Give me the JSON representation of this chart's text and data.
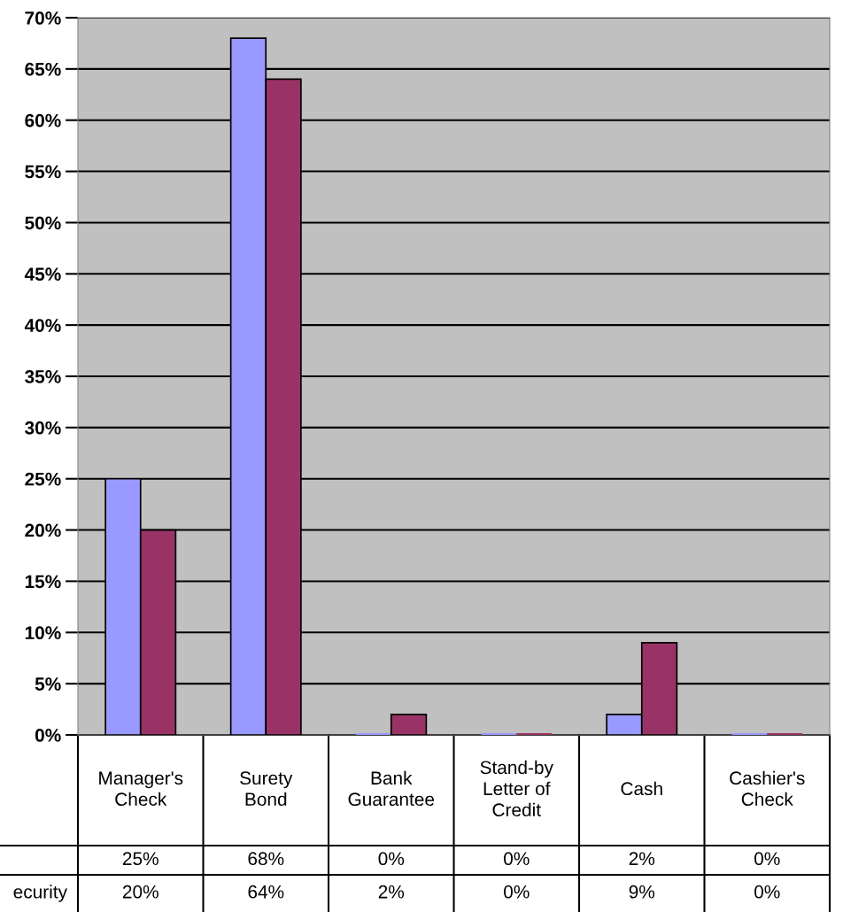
{
  "chart_data": {
    "type": "bar",
    "categories": [
      "Manager's\nCheck",
      "Surety\nBond",
      "Bank\nGuarantee",
      "Stand-by\nLetter of\nCredit",
      "Cash",
      "Cashier's\nCheck"
    ],
    "series": [
      {
        "color": "#9999ff",
        "values": [
          25,
          68,
          0,
          0,
          2,
          0
        ],
        "value_labels": [
          "25%",
          "68%",
          "0%",
          "0%",
          "2%",
          "0%"
        ]
      },
      {
        "name": "ecurity",
        "color": "#993366",
        "values": [
          20,
          64,
          2,
          0,
          9,
          0
        ],
        "value_labels": [
          "20%",
          "64%",
          "2%",
          "0%",
          "9%",
          "0%"
        ]
      }
    ],
    "ylim": [
      0,
      70
    ],
    "yticks": [
      {
        "value": 0,
        "label": "0%"
      },
      {
        "value": 5,
        "label": "5%"
      },
      {
        "value": 10,
        "label": "10%"
      },
      {
        "value": 15,
        "label": "15%"
      },
      {
        "value": 20,
        "label": "20%"
      },
      {
        "value": 25,
        "label": "25%"
      },
      {
        "value": 30,
        "label": "30%"
      },
      {
        "value": 35,
        "label": "35%"
      },
      {
        "value": 40,
        "label": "40%"
      },
      {
        "value": 45,
        "label": "45%"
      },
      {
        "value": 50,
        "label": "50%"
      },
      {
        "value": 55,
        "label": "55%"
      },
      {
        "value": 60,
        "label": "60%"
      },
      {
        "value": 65,
        "label": "65%"
      },
      {
        "value": 70,
        "label": "70%"
      }
    ],
    "grid": "y",
    "data_labels": true,
    "legend": false
  }
}
